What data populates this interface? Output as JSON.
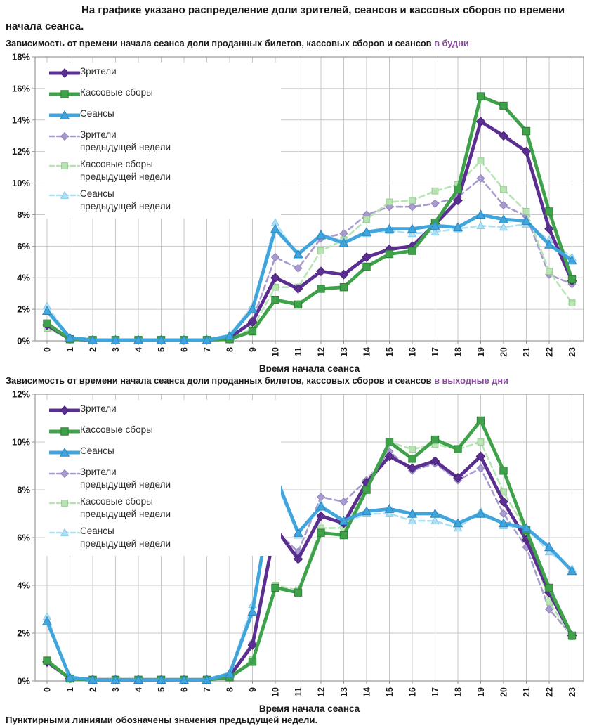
{
  "page": {
    "header": "На графике указано распределение доли зрителей, сеансов и кассовых сборов по времени начала сеанса.",
    "footer": "Пунктирными линиями обозначены значения предыдущей недели."
  },
  "colors": {
    "viewers": "#5b2e91",
    "box_office": "#3fa24b",
    "sessions": "#3fa5dc",
    "viewers_prev": "#a99bd0",
    "box_office_prev": "#b8e4b4",
    "sessions_prev": "#aee0f5",
    "title_accent": "#8a4a9d",
    "grid": "#c8c8c8",
    "axis": "#9a9a9a"
  },
  "legend": {
    "items": [
      {
        "key": "viewers",
        "label": "Зрители"
      },
      {
        "key": "box-office",
        "label": "Кассовые сборы"
      },
      {
        "key": "sessions",
        "label": "Сеансы"
      },
      {
        "key": "viewers-prev",
        "label": "Зрители",
        "label2": "предыдущей недели"
      },
      {
        "key": "box-office-prev",
        "label": "Кассовые сборы",
        "label2": "предыдущей недели"
      },
      {
        "key": "sessions-prev",
        "label": "Сеансы",
        "label2": "предыдущей недели"
      }
    ]
  },
  "chart_data": [
    {
      "type": "line",
      "title": "Зависимость от времени начала сеанса доли проданных билетов, кассовых сборов и сеансов",
      "title_accent": "в будни",
      "xlabel": "Время начала сеанса",
      "x": [
        0,
        1,
        2,
        3,
        4,
        5,
        6,
        7,
        8,
        9,
        10,
        11,
        12,
        13,
        14,
        15,
        16,
        17,
        18,
        19,
        20,
        21,
        22,
        23
      ],
      "ylim": [
        0,
        18
      ],
      "y_tick_step": 2,
      "grid": true,
      "legend_position": "top-left",
      "series": [
        {
          "key": "viewers",
          "name": "Зрители",
          "color": "#5b2e91",
          "edge": "#4a2478",
          "dash": false,
          "marker": "diamond",
          "values": [
            1.0,
            0.1,
            0.05,
            0.05,
            0.05,
            0.05,
            0.05,
            0.05,
            0.2,
            1.2,
            4.0,
            3.3,
            4.4,
            4.2,
            5.3,
            5.8,
            6.0,
            7.4,
            8.9,
            13.9,
            13.0,
            12.0,
            7.1,
            3.8
          ]
        },
        {
          "key": "box-office",
          "name": "Кассовые сборы",
          "color": "#3fa24b",
          "edge": "#2e8038",
          "dash": false,
          "marker": "square",
          "values": [
            1.1,
            0.1,
            0.05,
            0.05,
            0.05,
            0.05,
            0.05,
            0.05,
            0.1,
            0.6,
            2.6,
            2.3,
            3.3,
            3.4,
            4.7,
            5.5,
            5.7,
            7.5,
            9.6,
            15.5,
            14.9,
            13.3,
            8.2,
            3.9
          ]
        },
        {
          "key": "sessions",
          "name": "Сеансы",
          "color": "#3fa5dc",
          "edge": "#2b88c0",
          "dash": false,
          "marker": "triangle",
          "values": [
            1.9,
            0.2,
            0.05,
            0.05,
            0.05,
            0.05,
            0.05,
            0.05,
            0.3,
            2.0,
            7.1,
            5.5,
            6.7,
            6.2,
            6.9,
            7.1,
            7.1,
            7.3,
            7.2,
            8.0,
            7.7,
            7.6,
            6.1,
            5.1
          ]
        },
        {
          "key": "viewers-prev",
          "name": "Зрители предыдущей недели",
          "color": "#a99bd0",
          "edge": "#9184bd",
          "dash": true,
          "marker": "diamond",
          "values": [
            0.9,
            0.1,
            0.05,
            0.05,
            0.05,
            0.05,
            0.05,
            0.05,
            0.2,
            1.3,
            5.3,
            4.6,
            6.5,
            6.8,
            8.0,
            8.5,
            8.5,
            8.7,
            9.1,
            10.3,
            8.6,
            7.9,
            4.2,
            3.6
          ]
        },
        {
          "key": "box-office-prev",
          "name": "Кассовые сборы предыдущей недели",
          "color": "#b8e4b4",
          "edge": "#94cc90",
          "dash": true,
          "marker": "square",
          "values": [
            0.8,
            0.1,
            0.05,
            0.05,
            0.05,
            0.05,
            0.05,
            0.05,
            0.1,
            0.8,
            3.4,
            3.4,
            5.7,
            6.4,
            7.7,
            8.8,
            8.9,
            9.5,
            9.9,
            11.4,
            9.6,
            8.2,
            4.4,
            2.4
          ]
        },
        {
          "key": "sessions-prev",
          "name": "Сеансы предыдущей недели",
          "color": "#aee0f5",
          "edge": "#86c9e8",
          "dash": true,
          "marker": "triangle",
          "values": [
            2.2,
            0.2,
            0.05,
            0.05,
            0.05,
            0.05,
            0.05,
            0.05,
            0.4,
            2.2,
            7.5,
            5.4,
            6.8,
            6.3,
            6.8,
            7.0,
            6.8,
            6.9,
            7.1,
            7.3,
            7.2,
            7.4,
            6.4,
            5.3
          ]
        }
      ]
    },
    {
      "type": "line",
      "title": "Зависимость от времени начала сеанса доли проданных билетов, кассовых сборов и сеансов",
      "title_accent": "в выходные дни",
      "xlabel": "Время начала сеанса",
      "x": [
        0,
        1,
        2,
        3,
        4,
        5,
        6,
        7,
        8,
        9,
        10,
        11,
        12,
        13,
        14,
        15,
        16,
        17,
        18,
        19,
        20,
        21,
        22,
        23
      ],
      "ylim": [
        0,
        12
      ],
      "y_tick_step": 2,
      "grid": true,
      "legend_position": "top-left",
      "series": [
        {
          "key": "viewers",
          "name": "Зрители",
          "color": "#5b2e91",
          "edge": "#4a2478",
          "dash": false,
          "marker": "diamond",
          "values": [
            0.8,
            0.1,
            0.05,
            0.05,
            0.05,
            0.05,
            0.05,
            0.05,
            0.2,
            1.5,
            6.4,
            5.1,
            6.9,
            6.6,
            8.3,
            9.4,
            8.9,
            9.2,
            8.5,
            9.4,
            7.5,
            5.9,
            3.7,
            1.9
          ]
        },
        {
          "key": "box-office",
          "name": "Кассовые сборы",
          "color": "#3fa24b",
          "edge": "#2e8038",
          "dash": false,
          "marker": "square",
          "values": [
            0.85,
            0.1,
            0.05,
            0.05,
            0.05,
            0.05,
            0.05,
            0.05,
            0.15,
            0.8,
            3.9,
            3.7,
            6.2,
            6.1,
            8.0,
            10.0,
            9.3,
            10.1,
            9.7,
            10.9,
            8.8,
            6.3,
            3.9,
            1.9
          ]
        },
        {
          "key": "sessions",
          "name": "Сеансы",
          "color": "#3fa5dc",
          "edge": "#2b88c0",
          "dash": false,
          "marker": "triangle",
          "values": [
            2.5,
            0.15,
            0.05,
            0.05,
            0.05,
            0.05,
            0.05,
            0.05,
            0.3,
            2.9,
            8.6,
            6.2,
            7.3,
            6.7,
            7.1,
            7.2,
            7.0,
            7.0,
            6.6,
            7.0,
            6.6,
            6.4,
            5.6,
            4.6
          ]
        },
        {
          "key": "viewers-prev",
          "name": "Зрители предыдущей недели",
          "color": "#a99bd0",
          "edge": "#9184bd",
          "dash": true,
          "marker": "diamond",
          "values": [
            0.75,
            0.1,
            0.05,
            0.05,
            0.05,
            0.05,
            0.05,
            0.05,
            0.2,
            1.6,
            6.3,
            5.4,
            7.7,
            7.5,
            8.4,
            9.6,
            8.8,
            9.1,
            8.4,
            8.9,
            7.0,
            5.6,
            3.0,
            1.9
          ]
        },
        {
          "key": "box-office-prev",
          "name": "Кассовые сборы предыдущей недели",
          "color": "#b8e4b4",
          "edge": "#94cc90",
          "dash": true,
          "marker": "square",
          "values": [
            0.8,
            0.1,
            0.05,
            0.05,
            0.05,
            0.05,
            0.05,
            0.05,
            0.15,
            0.9,
            4.0,
            3.8,
            6.4,
            6.4,
            8.2,
            10.0,
            9.7,
            9.9,
            9.7,
            10.0,
            7.9,
            6.3,
            3.3,
            1.85
          ]
        },
        {
          "key": "sessions-prev",
          "name": "Сеансы предыдущей недели",
          "color": "#aee0f5",
          "edge": "#86c9e8",
          "dash": true,
          "marker": "triangle",
          "values": [
            2.7,
            0.15,
            0.05,
            0.05,
            0.05,
            0.05,
            0.05,
            0.05,
            0.35,
            3.2,
            8.4,
            6.1,
            7.4,
            6.6,
            7.0,
            7.0,
            6.7,
            6.7,
            6.4,
            7.1,
            6.5,
            6.4,
            5.4,
            4.7
          ]
        }
      ]
    }
  ]
}
